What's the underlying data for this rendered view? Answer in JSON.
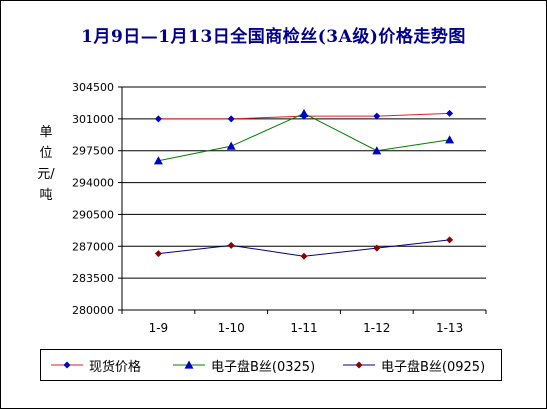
{
  "title": "1月9日—1月13日全国商检丝(3A级)价格走势图",
  "ylabel": "单位\n元/吨",
  "chart_data": {
    "type": "line",
    "title": "1月9日—1月13日全国商检丝(3A级)价格走势图",
    "ylabel": "单位 元/吨",
    "xlabel": "",
    "categories": [
      "1-9",
      "1-10",
      "1-11",
      "1-12",
      "1-13"
    ],
    "ylim": [
      280000,
      304500
    ],
    "yticks": [
      280000,
      283500,
      287000,
      290500,
      294000,
      297500,
      301000,
      304500
    ],
    "grid": true,
    "legend_position": "bottom",
    "series": [
      {
        "name": "现货价格",
        "color": "#e02020",
        "marker": "diamond",
        "marker_color": "#0000cc",
        "values": [
          301000,
          301000,
          301300,
          301300,
          301600
        ]
      },
      {
        "name": "电子盘B丝(0325)",
        "color": "#008000",
        "marker": "triangle",
        "marker_color": "#0000cc",
        "values": [
          296400,
          298000,
          301600,
          297500,
          298700
        ]
      },
      {
        "name": "电子盘B丝(0925)",
        "color": "#00008b",
        "marker": "diamond",
        "marker_color": "#8b0000",
        "values": [
          286200,
          287100,
          285900,
          286800,
          287700
        ]
      }
    ]
  }
}
